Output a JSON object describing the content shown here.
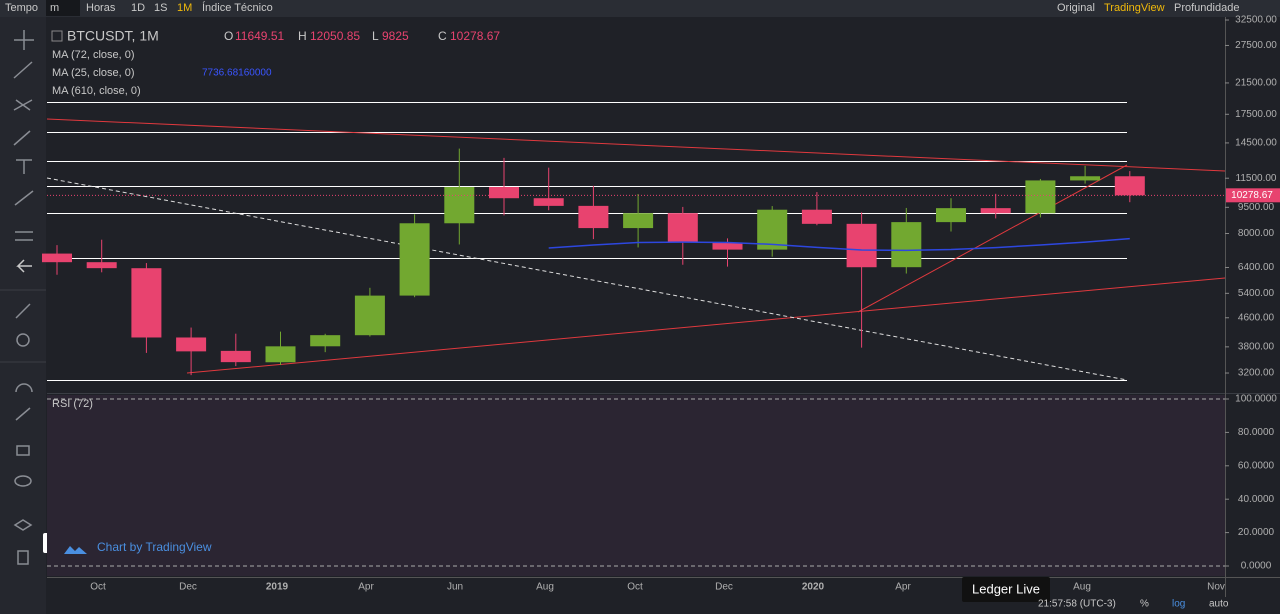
{
  "toolbar": {
    "left": [
      "Tempo",
      "m",
      "Horas",
      "1D",
      "1S",
      "1M",
      "Índice Técnico"
    ],
    "right": [
      "Original",
      "TradingView",
      "Profundidade"
    ]
  },
  "chart_data": {
    "type": "candlestick",
    "title": "BTCUSDT, 1M",
    "legend_letters": [
      "O",
      "H",
      "L",
      "C"
    ],
    "open": [
      7011,
      6626,
      6369,
      4041,
      3701,
      3434,
      3814,
      4102,
      5321,
      8555,
      10855,
      10085,
      9590,
      8289,
      9141,
      7541,
      7195,
      9352,
      8523,
      6412,
      8620,
      9448,
      9138,
      11335,
      11649.51
    ],
    "high": [
      7410,
      7680,
      6588,
      4313,
      4143,
      4198,
      4140,
      5600,
      9074,
      13970,
      13147,
      12325,
      10939,
      10370,
      9525,
      7750,
      9578,
      10500,
      9188,
      9460,
      10080,
      10380,
      11444,
      12468,
      12050.85
    ],
    "low": [
      6100,
      6200,
      3652,
      3156,
      3349,
      3373,
      3670,
      4067,
      5265,
      7444,
      9010,
      9320,
      7710,
      7300,
      6515,
      6435,
      6871,
      8445,
      3782,
      6150,
      8106,
      8833,
      8893,
      11100,
      9825.0
    ],
    "close": [
      6626,
      6371,
      4041,
      3689,
      3437,
      3813,
      4103,
      5320,
      8555,
      10855,
      10085,
      9590,
      8289,
      9140,
      7541,
      7196,
      9352,
      8523,
      6410,
      8620,
      9448,
      9138,
      11335,
      11649,
      10278.67
    ],
    "up_color": "#72a830",
    "down_color": "#e8436f",
    "series": [
      {
        "name": "MA (25, close, 0)",
        "color": "#2d47e0",
        "legend_value": "7736.68160000",
        "values": [
          null,
          null,
          null,
          null,
          null,
          null,
          null,
          null,
          null,
          null,
          null,
          7270,
          7420,
          7540,
          7560,
          7540,
          7450,
          7300,
          7180,
          7160,
          7200,
          7290,
          7420,
          7560,
          7736.6816
        ]
      }
    ],
    "indicators": [
      "MA (72, close, 0)",
      "MA (610, close, 0)"
    ],
    "log_scale": true,
    "ylim": [
      2825,
      33150
    ],
    "yticks": [
      {
        "value": 32500,
        "label": "32500.00"
      },
      {
        "value": 27500,
        "label": "27500.00"
      },
      {
        "value": 21500,
        "label": "21500.00"
      },
      {
        "value": 17500,
        "label": "17500.00"
      },
      {
        "value": 14500,
        "label": "14500.00"
      },
      {
        "value": 11500,
        "label": "11500.00"
      },
      {
        "value": 9500,
        "label": "9500.00"
      },
      {
        "value": 8000,
        "label": "8000.00"
      },
      {
        "value": 6400,
        "label": "6400.00"
      },
      {
        "value": 5400,
        "label": "5400.00"
      },
      {
        "value": 4600,
        "label": "4600.00"
      },
      {
        "value": 3800,
        "label": "3800.00"
      },
      {
        "value": 3200,
        "label": "3200.00"
      }
    ],
    "time_labels": [
      "Oct",
      "Dec",
      "2019",
      "Apr",
      "Jun",
      "Aug",
      "Oct",
      "Dec",
      "2020",
      "Apr",
      "Aug",
      "Nov"
    ]
  },
  "rsi": {
    "name": "RSI (72)",
    "ylim": [
      0,
      100
    ],
    "yticks": [
      {
        "value": 100,
        "label": "100.0000"
      },
      {
        "value": 80,
        "label": "80.0000"
      },
      {
        "value": 60,
        "label": "60.0000"
      },
      {
        "value": 40,
        "label": "40.0000"
      },
      {
        "value": 20,
        "label": "20.0000"
      },
      {
        "value": 0,
        "label": "0.0000"
      }
    ]
  },
  "watermark": "Chart by TradingView",
  "tooltip": "Ledger Live",
  "status": {
    "time": "21:57:58 (UTC-3)",
    "buttons": [
      "%",
      "log",
      "auto"
    ]
  }
}
